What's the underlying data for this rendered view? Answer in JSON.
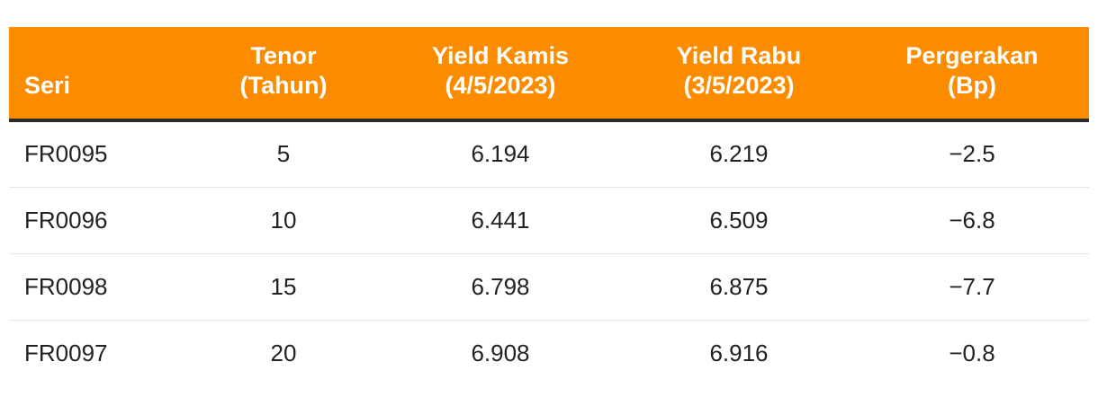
{
  "chart_data": {
    "type": "table",
    "columns": [
      {
        "line1": "",
        "line2": "Seri"
      },
      {
        "line1": "Tenor",
        "line2": "(Tahun)"
      },
      {
        "line1": "Yield Kamis",
        "line2": "(4/5/2023)"
      },
      {
        "line1": "Yield Rabu",
        "line2": "(3/5/2023)"
      },
      {
        "line1": "Pergerakan",
        "line2": "(Bp)"
      }
    ],
    "rows": [
      [
        "FR0095",
        "5",
        "6.194",
        "6.219",
        "−2.5"
      ],
      [
        "FR0096",
        "10",
        "6.441",
        "6.509",
        "−6.8"
      ],
      [
        "FR0098",
        "15",
        "6.798",
        "6.875",
        "−7.7"
      ],
      [
        "FR0097",
        "20",
        "6.908",
        "6.916",
        "−0.8"
      ]
    ]
  },
  "colors": {
    "header_bg": "#fb8c00",
    "header_text": "#ffffff",
    "header_rule": "#2b2b2b",
    "row_divider": "#e6e6e6"
  }
}
